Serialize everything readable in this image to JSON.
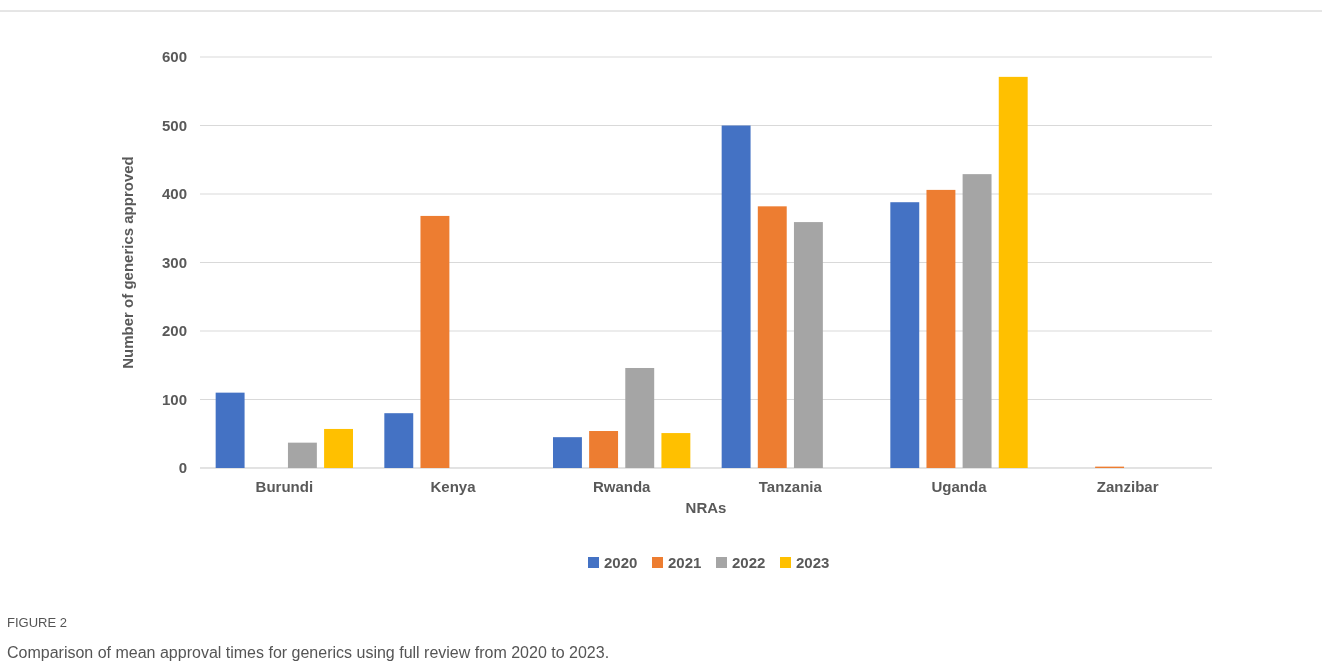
{
  "chart_data": {
    "type": "bar",
    "xlabel": "NRAs",
    "ylabel": "Number of generics approved",
    "categories": [
      "Burundi",
      "Kenya",
      "Rwanda",
      "Tanzania",
      "Uganda",
      "Zanzibar"
    ],
    "series": [
      {
        "name": "2020",
        "color": "#4472c4",
        "values": [
          110,
          80,
          45,
          500,
          388,
          null
        ]
      },
      {
        "name": "2021",
        "color": "#ed7d31",
        "values": [
          null,
          368,
          54,
          382,
          406,
          2
        ]
      },
      {
        "name": "2022",
        "color": "#a5a5a5",
        "values": [
          37,
          null,
          146,
          359,
          429,
          null
        ]
      },
      {
        "name": "2023",
        "color": "#ffc000",
        "values": [
          57,
          null,
          51,
          null,
          571,
          null
        ]
      }
    ],
    "ylim": [
      0,
      600
    ],
    "yticks": [
      0,
      100,
      200,
      300,
      400,
      500,
      600
    ],
    "grid": "y",
    "legend": "bottom",
    "annotations": [
      "FIGURE 2",
      "Comparison of mean approval times for generics using full review from 2020 to 2023."
    ]
  }
}
